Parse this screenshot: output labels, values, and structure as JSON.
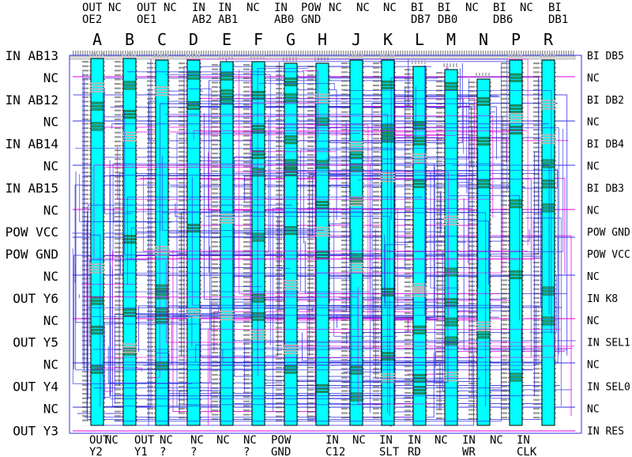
{
  "columns": [
    "A",
    "B",
    "C",
    "D",
    "E",
    "F",
    "G",
    "H",
    "J",
    "K",
    "L",
    "M",
    "N",
    "P",
    "R"
  ],
  "top_pins": [
    [
      "OUT",
      "OE2"
    ],
    [
      "NC",
      ""
    ],
    [
      "OUT",
      "OE1"
    ],
    [
      "NC",
      ""
    ],
    [
      "IN",
      "AB2"
    ],
    [
      "IN",
      "AB1"
    ],
    [
      "NC",
      ""
    ],
    [
      "IN",
      "AB0"
    ],
    [
      "POW",
      "GND"
    ],
    [
      "NC",
      ""
    ],
    [
      "NC",
      ""
    ],
    [
      "NC",
      ""
    ],
    [
      "BI",
      "DB7"
    ],
    [
      "BI",
      "DB0"
    ],
    [
      "NC",
      ""
    ],
    [
      "BI",
      "DB6"
    ],
    [
      "NC",
      ""
    ],
    [
      "BI",
      "DB1"
    ]
  ],
  "bottom_pins": [
    [
      "OUT",
      "Y2"
    ],
    [
      "NC",
      ""
    ],
    [
      "OUT",
      "Y1"
    ],
    [
      "NC",
      "?"
    ],
    [
      "NC",
      "?"
    ],
    [
      "NC",
      ""
    ],
    [
      "NC",
      "?"
    ],
    [
      "POW",
      "GND"
    ],
    [
      "IN",
      "C12"
    ],
    [
      "NC",
      ""
    ],
    [
      "IN",
      "SLT"
    ],
    [
      "IN",
      "RD"
    ],
    [
      "NC",
      ""
    ],
    [
      "IN",
      "WR"
    ],
    [
      "NC",
      ""
    ],
    [
      "IN",
      "CLK"
    ]
  ],
  "left_pins": [
    "IN AB13",
    "NC",
    "IN AB12",
    "NC",
    "IN AB14",
    "NC",
    "IN AB15",
    "NC",
    "POW VCC",
    "POW GND",
    "NC",
    "OUT Y6",
    "NC",
    "OUT Y5",
    "NC",
    "OUT Y4",
    "NC",
    "OUT Y3"
  ],
  "right_pins": [
    "BI DB5",
    "NC",
    "BI DB2",
    "NC",
    "BI DB4",
    "NC",
    "BI DB3",
    "NC",
    "POW GND",
    "POW VCC",
    "NC",
    "IN K8",
    "NC",
    "IN SEL1",
    "NC",
    "IN SEL0",
    "NC",
    "IN RES"
  ],
  "colors": {
    "chip_fill": "#00ffff",
    "chip_border": "#000000",
    "trace_blue": "#3030e0",
    "trace_magenta": "#e000e0",
    "pad_gray": "#b8b8b8",
    "pad_green": "#20a060"
  }
}
